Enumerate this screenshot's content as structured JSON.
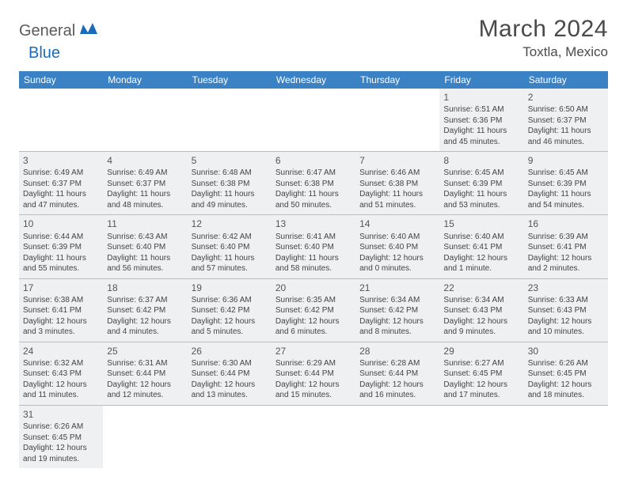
{
  "logo": {
    "text1": "General",
    "text2": "Blue"
  },
  "title": "March 2024",
  "location": "Toxtla, Mexico",
  "colors": {
    "header_bg": "#3b82c4",
    "header_text": "#ffffff",
    "cell_bg": "#eef0f2",
    "border": "#bcbcbc",
    "logo_gray": "#5a5a5a",
    "logo_blue": "#1a6cba"
  },
  "daysOfWeek": [
    "Sunday",
    "Monday",
    "Tuesday",
    "Wednesday",
    "Thursday",
    "Friday",
    "Saturday"
  ],
  "weeks": [
    [
      null,
      null,
      null,
      null,
      null,
      {
        "n": "1",
        "sr": "Sunrise: 6:51 AM",
        "ss": "Sunset: 6:36 PM",
        "d1": "Daylight: 11 hours",
        "d2": "and 45 minutes."
      },
      {
        "n": "2",
        "sr": "Sunrise: 6:50 AM",
        "ss": "Sunset: 6:37 PM",
        "d1": "Daylight: 11 hours",
        "d2": "and 46 minutes."
      }
    ],
    [
      {
        "n": "3",
        "sr": "Sunrise: 6:49 AM",
        "ss": "Sunset: 6:37 PM",
        "d1": "Daylight: 11 hours",
        "d2": "and 47 minutes."
      },
      {
        "n": "4",
        "sr": "Sunrise: 6:49 AM",
        "ss": "Sunset: 6:37 PM",
        "d1": "Daylight: 11 hours",
        "d2": "and 48 minutes."
      },
      {
        "n": "5",
        "sr": "Sunrise: 6:48 AM",
        "ss": "Sunset: 6:38 PM",
        "d1": "Daylight: 11 hours",
        "d2": "and 49 minutes."
      },
      {
        "n": "6",
        "sr": "Sunrise: 6:47 AM",
        "ss": "Sunset: 6:38 PM",
        "d1": "Daylight: 11 hours",
        "d2": "and 50 minutes."
      },
      {
        "n": "7",
        "sr": "Sunrise: 6:46 AM",
        "ss": "Sunset: 6:38 PM",
        "d1": "Daylight: 11 hours",
        "d2": "and 51 minutes."
      },
      {
        "n": "8",
        "sr": "Sunrise: 6:45 AM",
        "ss": "Sunset: 6:39 PM",
        "d1": "Daylight: 11 hours",
        "d2": "and 53 minutes."
      },
      {
        "n": "9",
        "sr": "Sunrise: 6:45 AM",
        "ss": "Sunset: 6:39 PM",
        "d1": "Daylight: 11 hours",
        "d2": "and 54 minutes."
      }
    ],
    [
      {
        "n": "10",
        "sr": "Sunrise: 6:44 AM",
        "ss": "Sunset: 6:39 PM",
        "d1": "Daylight: 11 hours",
        "d2": "and 55 minutes."
      },
      {
        "n": "11",
        "sr": "Sunrise: 6:43 AM",
        "ss": "Sunset: 6:40 PM",
        "d1": "Daylight: 11 hours",
        "d2": "and 56 minutes."
      },
      {
        "n": "12",
        "sr": "Sunrise: 6:42 AM",
        "ss": "Sunset: 6:40 PM",
        "d1": "Daylight: 11 hours",
        "d2": "and 57 minutes."
      },
      {
        "n": "13",
        "sr": "Sunrise: 6:41 AM",
        "ss": "Sunset: 6:40 PM",
        "d1": "Daylight: 11 hours",
        "d2": "and 58 minutes."
      },
      {
        "n": "14",
        "sr": "Sunrise: 6:40 AM",
        "ss": "Sunset: 6:40 PM",
        "d1": "Daylight: 12 hours",
        "d2": "and 0 minutes."
      },
      {
        "n": "15",
        "sr": "Sunrise: 6:40 AM",
        "ss": "Sunset: 6:41 PM",
        "d1": "Daylight: 12 hours",
        "d2": "and 1 minute."
      },
      {
        "n": "16",
        "sr": "Sunrise: 6:39 AM",
        "ss": "Sunset: 6:41 PM",
        "d1": "Daylight: 12 hours",
        "d2": "and 2 minutes."
      }
    ],
    [
      {
        "n": "17",
        "sr": "Sunrise: 6:38 AM",
        "ss": "Sunset: 6:41 PM",
        "d1": "Daylight: 12 hours",
        "d2": "and 3 minutes."
      },
      {
        "n": "18",
        "sr": "Sunrise: 6:37 AM",
        "ss": "Sunset: 6:42 PM",
        "d1": "Daylight: 12 hours",
        "d2": "and 4 minutes."
      },
      {
        "n": "19",
        "sr": "Sunrise: 6:36 AM",
        "ss": "Sunset: 6:42 PM",
        "d1": "Daylight: 12 hours",
        "d2": "and 5 minutes."
      },
      {
        "n": "20",
        "sr": "Sunrise: 6:35 AM",
        "ss": "Sunset: 6:42 PM",
        "d1": "Daylight: 12 hours",
        "d2": "and 6 minutes."
      },
      {
        "n": "21",
        "sr": "Sunrise: 6:34 AM",
        "ss": "Sunset: 6:42 PM",
        "d1": "Daylight: 12 hours",
        "d2": "and 8 minutes."
      },
      {
        "n": "22",
        "sr": "Sunrise: 6:34 AM",
        "ss": "Sunset: 6:43 PM",
        "d1": "Daylight: 12 hours",
        "d2": "and 9 minutes."
      },
      {
        "n": "23",
        "sr": "Sunrise: 6:33 AM",
        "ss": "Sunset: 6:43 PM",
        "d1": "Daylight: 12 hours",
        "d2": "and 10 minutes."
      }
    ],
    [
      {
        "n": "24",
        "sr": "Sunrise: 6:32 AM",
        "ss": "Sunset: 6:43 PM",
        "d1": "Daylight: 12 hours",
        "d2": "and 11 minutes."
      },
      {
        "n": "25",
        "sr": "Sunrise: 6:31 AM",
        "ss": "Sunset: 6:44 PM",
        "d1": "Daylight: 12 hours",
        "d2": "and 12 minutes."
      },
      {
        "n": "26",
        "sr": "Sunrise: 6:30 AM",
        "ss": "Sunset: 6:44 PM",
        "d1": "Daylight: 12 hours",
        "d2": "and 13 minutes."
      },
      {
        "n": "27",
        "sr": "Sunrise: 6:29 AM",
        "ss": "Sunset: 6:44 PM",
        "d1": "Daylight: 12 hours",
        "d2": "and 15 minutes."
      },
      {
        "n": "28",
        "sr": "Sunrise: 6:28 AM",
        "ss": "Sunset: 6:44 PM",
        "d1": "Daylight: 12 hours",
        "d2": "and 16 minutes."
      },
      {
        "n": "29",
        "sr": "Sunrise: 6:27 AM",
        "ss": "Sunset: 6:45 PM",
        "d1": "Daylight: 12 hours",
        "d2": "and 17 minutes."
      },
      {
        "n": "30",
        "sr": "Sunrise: 6:26 AM",
        "ss": "Sunset: 6:45 PM",
        "d1": "Daylight: 12 hours",
        "d2": "and 18 minutes."
      }
    ],
    [
      {
        "n": "31",
        "sr": "Sunrise: 6:26 AM",
        "ss": "Sunset: 6:45 PM",
        "d1": "Daylight: 12 hours",
        "d2": "and 19 minutes."
      },
      null,
      null,
      null,
      null,
      null,
      null
    ]
  ]
}
